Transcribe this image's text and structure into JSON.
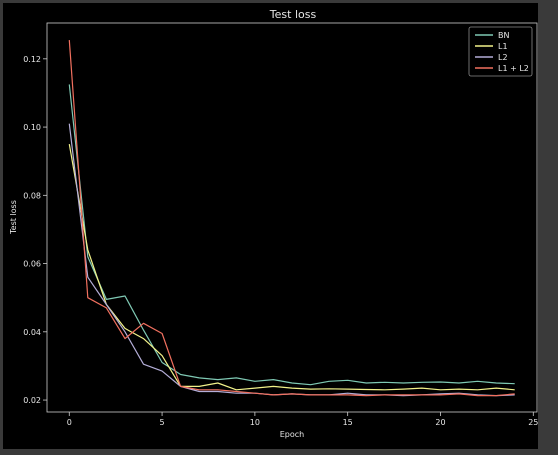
{
  "chart_data": {
    "type": "line",
    "title": "Test loss",
    "xlabel": "Epoch",
    "ylabel": "Test loss",
    "xlim": [
      -1.2,
      25.2
    ],
    "ylim": [
      0.0165,
      0.1305
    ],
    "xticks": [
      0,
      5,
      10,
      15,
      20,
      25
    ],
    "yticks": [
      0.02,
      0.04,
      0.06,
      0.08,
      0.1,
      0.12
    ],
    "ytick_labels": [
      "0.02",
      "0.04",
      "0.06",
      "0.08",
      "0.10",
      "0.12"
    ],
    "grid": false,
    "legend_position": "top-right",
    "x": [
      0,
      1,
      2,
      3,
      4,
      5,
      6,
      7,
      8,
      9,
      10,
      11,
      12,
      13,
      14,
      15,
      16,
      17,
      18,
      19,
      20,
      21,
      22,
      23,
      24
    ],
    "series": [
      {
        "name": "BN",
        "color": "#7fc9b4",
        "values": [
          0.1125,
          0.062,
          0.0495,
          0.0505,
          0.0405,
          0.031,
          0.0275,
          0.0265,
          0.026,
          0.0265,
          0.0255,
          0.026,
          0.025,
          0.0245,
          0.0255,
          0.0258,
          0.025,
          0.0252,
          0.025,
          0.0252,
          0.0253,
          0.025,
          0.0255,
          0.025,
          0.0248
        ]
      },
      {
        "name": "L1",
        "color": "#f2f28a",
        "values": [
          0.095,
          0.064,
          0.048,
          0.041,
          0.038,
          0.033,
          0.024,
          0.024,
          0.025,
          0.023,
          0.0235,
          0.024,
          0.0235,
          0.0232,
          0.0233,
          0.0232,
          0.0231,
          0.023,
          0.0232,
          0.0235,
          0.023,
          0.0232,
          0.023,
          0.0235,
          0.023
        ]
      },
      {
        "name": "L2",
        "color": "#b4aed8",
        "values": [
          0.101,
          0.056,
          0.048,
          0.04,
          0.0305,
          0.0285,
          0.024,
          0.0225,
          0.0225,
          0.022,
          0.022,
          0.0215,
          0.0218,
          0.0215,
          0.0215,
          0.022,
          0.0215,
          0.0215,
          0.0213,
          0.0215,
          0.0218,
          0.022,
          0.0215,
          0.0213,
          0.0215
        ]
      },
      {
        "name": "L1 + L2",
        "color": "#f1705f",
        "values": [
          0.1255,
          0.05,
          0.047,
          0.038,
          0.0425,
          0.0395,
          0.024,
          0.023,
          0.023,
          0.0225,
          0.022,
          0.0215,
          0.0218,
          0.0215,
          0.0215,
          0.0215,
          0.0213,
          0.0215,
          0.0215,
          0.0215,
          0.0215,
          0.0218,
          0.0213,
          0.0213,
          0.0218
        ]
      }
    ]
  }
}
